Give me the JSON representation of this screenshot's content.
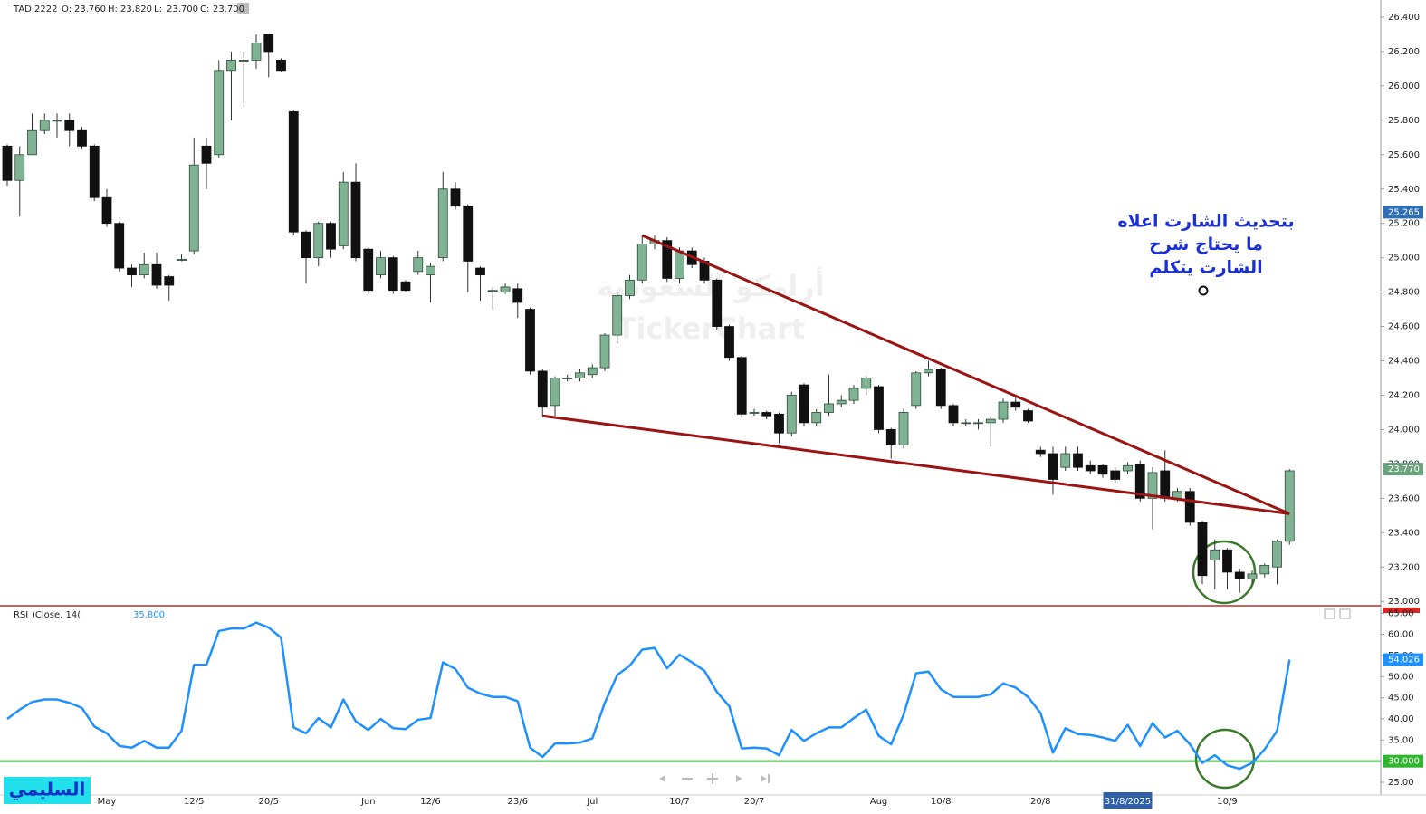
{
  "chart_data": [
    {
      "type": "candlestick",
      "symbol": "TAD.2222",
      "ohlc_info": [
        {
          "label": "O:",
          "value": "23.760"
        },
        {
          "label": "H:",
          "value": "23.820"
        },
        {
          "label": "L:",
          "value": "23.700"
        },
        {
          "label": "C:",
          "value": "23.700"
        }
      ],
      "categories": [
        null,
        null,
        null,
        null,
        null,
        null,
        null,
        null,
        "May",
        null,
        null,
        null,
        null,
        null,
        null,
        "12/5",
        null,
        null,
        null,
        null,
        null,
        "20/5",
        null,
        null,
        null,
        null,
        null,
        null,
        null,
        "Jun",
        null,
        null,
        null,
        null,
        "12/6",
        null,
        null,
        null,
        null,
        null,
        null,
        "23/6",
        null,
        null,
        null,
        null,
        null,
        "Jul",
        null,
        null,
        null,
        null,
        null,
        null,
        "10/7",
        null,
        null,
        null,
        null,
        null,
        "20/7",
        null,
        null,
        null,
        null,
        null,
        null,
        null,
        null,
        null,
        "Aug",
        null,
        null,
        null,
        null,
        "10/8",
        null,
        null,
        null,
        null,
        null,
        null,
        null,
        "20/8",
        null,
        null,
        null,
        null,
        null,
        null,
        "31/8/2025",
        null,
        null,
        null,
        null,
        null,
        null,
        null,
        "10/9",
        null,
        null,
        null,
        null,
        null
      ],
      "highlight": 90,
      "open": [
        25.65,
        25.45,
        25.6,
        25.74,
        25.8,
        25.8,
        25.74,
        25.65,
        25.35,
        25.2,
        24.94,
        24.9,
        24.96,
        24.89,
        24.99,
        25.04,
        25.65,
        25.6,
        26.09,
        26.15,
        26.15,
        26.3,
        26.15,
        25.85,
        25.15,
        25.0,
        25.2,
        25.07,
        25.44,
        25.05,
        24.9,
        25.0,
        24.86,
        24.92,
        24.9,
        25.0,
        25.4,
        25.3,
        24.94,
        24.81,
        24.8,
        24.82,
        24.7,
        24.34,
        24.14,
        24.3,
        24.3,
        24.32,
        24.36,
        24.55,
        24.78,
        24.87,
        25.08,
        25.1,
        24.88,
        25.04,
        24.98,
        24.87,
        24.6,
        24.42,
        24.1,
        24.1,
        24.09,
        23.98,
        24.26,
        24.04,
        24.1,
        24.15,
        24.17,
        24.24,
        24.25,
        24.0,
        23.91,
        24.14,
        24.33,
        24.35,
        24.14,
        24.04,
        24.04,
        24.04,
        24.06,
        24.16,
        24.11,
        23.88,
        23.86,
        23.78,
        23.86,
        23.79,
        23.79,
        23.76,
        23.76,
        23.8,
        23.6,
        23.76,
        23.6,
        23.64,
        23.46,
        23.24,
        23.3,
        23.17,
        23.13,
        23.16,
        23.2,
        23.35
      ],
      "high": [
        25.66,
        25.65,
        25.84,
        25.84,
        25.84,
        25.84,
        25.76,
        25.66,
        25.4,
        25.21,
        24.96,
        25.03,
        25.03,
        24.9,
        25.02,
        25.7,
        25.7,
        26.15,
        26.2,
        26.2,
        26.3,
        26.3,
        26.16,
        25.86,
        25.16,
        25.21,
        25.21,
        25.5,
        25.55,
        25.06,
        25.04,
        25.01,
        24.87,
        25.04,
        24.97,
        25.5,
        25.44,
        25.31,
        24.95,
        24.83,
        24.85,
        24.85,
        24.71,
        24.35,
        24.31,
        24.32,
        24.35,
        24.38,
        24.56,
        24.8,
        24.9,
        25.13,
        25.13,
        25.12,
        25.06,
        25.06,
        25.0,
        24.88,
        24.61,
        24.43,
        24.12,
        24.11,
        24.1,
        24.22,
        24.27,
        24.12,
        24.32,
        24.2,
        24.26,
        24.31,
        24.26,
        24.01,
        24.12,
        24.34,
        24.4,
        24.36,
        24.15,
        24.06,
        24.06,
        24.08,
        24.18,
        24.2,
        24.12,
        23.9,
        23.9,
        23.9,
        23.9,
        23.82,
        23.8,
        23.78,
        23.81,
        23.82,
        23.78,
        23.88,
        23.66,
        23.66,
        23.47,
        23.36,
        23.31,
        23.19,
        23.18,
        23.22,
        23.36,
        23.77
      ],
      "low": [
        25.42,
        25.24,
        25.6,
        25.72,
        25.7,
        25.65,
        25.63,
        25.33,
        25.18,
        24.92,
        24.83,
        24.88,
        24.82,
        24.75,
        24.98,
        25.02,
        25.4,
        25.58,
        25.8,
        25.9,
        26.1,
        26.05,
        26.08,
        25.13,
        24.85,
        24.95,
        25.0,
        25.05,
        24.98,
        24.79,
        24.88,
        24.79,
        24.8,
        24.9,
        24.74,
        24.98,
        25.28,
        24.8,
        24.75,
        24.7,
        24.79,
        24.65,
        24.32,
        24.08,
        24.08,
        24.28,
        24.28,
        24.3,
        24.34,
        24.5,
        24.76,
        24.85,
        25.05,
        24.86,
        24.85,
        24.94,
        24.85,
        24.58,
        24.4,
        24.07,
        24.08,
        24.06,
        23.92,
        23.96,
        24.02,
        24.02,
        24.08,
        24.13,
        24.15,
        24.2,
        23.98,
        23.83,
        23.89,
        24.12,
        24.31,
        24.12,
        24.02,
        24.02,
        24.0,
        23.9,
        24.04,
        24.11,
        24.04,
        23.84,
        23.62,
        23.76,
        23.76,
        23.74,
        23.72,
        23.69,
        23.74,
        23.58,
        23.42,
        23.58,
        23.58,
        23.44,
        23.1,
        23.07,
        23.07,
        23.05,
        23.1,
        23.14,
        23.1,
        23.33
      ],
      "close": [
        25.45,
        25.6,
        25.74,
        25.8,
        25.8,
        25.74,
        25.65,
        25.35,
        25.2,
        24.94,
        24.9,
        24.96,
        24.84,
        24.84,
        24.99,
        25.54,
        25.55,
        26.09,
        26.15,
        26.15,
        26.25,
        26.2,
        26.09,
        25.15,
        25.0,
        25.2,
        25.05,
        25.44,
        25.0,
        24.81,
        25.0,
        24.81,
        24.81,
        25.0,
        24.95,
        25.4,
        25.3,
        24.98,
        24.9,
        24.81,
        24.83,
        24.74,
        24.34,
        24.13,
        24.3,
        24.3,
        24.33,
        24.36,
        24.55,
        24.78,
        24.87,
        25.08,
        25.1,
        24.88,
        25.04,
        24.96,
        24.87,
        24.6,
        24.42,
        24.09,
        24.1,
        24.08,
        23.98,
        24.2,
        24.04,
        24.1,
        24.15,
        24.17,
        24.24,
        24.3,
        24.0,
        23.91,
        24.1,
        24.33,
        24.35,
        24.14,
        24.04,
        24.04,
        24.04,
        24.06,
        24.16,
        24.13,
        24.05,
        23.86,
        23.71,
        23.86,
        23.78,
        23.76,
        23.74,
        23.71,
        23.79,
        23.6,
        23.75,
        23.6,
        23.64,
        23.46,
        23.15,
        23.3,
        23.17,
        23.13,
        23.16,
        23.21,
        23.35,
        23.76
      ],
      "up_color": "#7fb394",
      "down_color": "#111111",
      "ylim": [
        22.98,
        26.5
      ],
      "yticks": [
        {
          "value": 23.0,
          "label": "23.000"
        },
        {
          "value": 23.2,
          "label": "23.200"
        },
        {
          "value": 23.4,
          "label": "23.400"
        },
        {
          "value": 23.6,
          "label": "23.600"
        },
        {
          "value": 23.8,
          "label": "23.800"
        },
        {
          "value": 24.0,
          "label": "24.000"
        },
        {
          "value": 24.2,
          "label": "24.200"
        },
        {
          "value": 24.4,
          "label": "24.400"
        },
        {
          "value": 24.6,
          "label": "24.600"
        },
        {
          "value": 24.8,
          "label": "24.800"
        },
        {
          "value": 25.0,
          "label": "25.000"
        },
        {
          "value": 25.2,
          "label": "25.200"
        },
        {
          "value": 25.4,
          "label": "25.400"
        },
        {
          "value": 25.6,
          "label": "25.600"
        },
        {
          "value": 25.8,
          "label": "25.800"
        },
        {
          "value": 26.0,
          "label": "26.000"
        },
        {
          "value": 26.2,
          "label": "26.200"
        },
        {
          "value": 26.4,
          "label": "26.400"
        }
      ],
      "price_tags": [
        {
          "value": 25.265,
          "label": "25.265",
          "color": "#2e6fb7"
        },
        {
          "value": 23.77,
          "label": "23.770",
          "color": "#6aa37e"
        }
      ],
      "trendlines": [
        {
          "start": [
            51,
            25.13
          ],
          "end": [
            103,
            23.51
          ],
          "color": "#9b1414"
        },
        {
          "start": [
            43,
            24.08
          ],
          "end": [
            103,
            23.51
          ],
          "color": "#9b1414"
        }
      ],
      "annotation": [
        "بتحديث الشارت اعلاه",
        "ما يحتاج شرح",
        "الشارت يتكلم"
      ],
      "watermark": [
        "أرامكو السعودية",
        "TickerChart"
      ]
    },
    {
      "type": "line",
      "title": "RSI",
      "params": ")Close, 14(",
      "header_value": "35.800",
      "color": "#1e90ff",
      "values": [
        40,
        42.2,
        44,
        44.6,
        44.6,
        43.8,
        42.6,
        38.2,
        36.6,
        33.6,
        33.2,
        34.8,
        33.2,
        33.2,
        37.2,
        52.8,
        52.8,
        60.8,
        61.4,
        61.4,
        62.8,
        61.6,
        59.2,
        38,
        36.6,
        40.2,
        38,
        44.6,
        39.4,
        37.4,
        40,
        37.8,
        37.6,
        39.8,
        40.2,
        53.4,
        51.8,
        47.4,
        46,
        45.2,
        45.2,
        44.2,
        33.2,
        31,
        34.2,
        34.2,
        34.4,
        35.4,
        43.8,
        50.4,
        52.6,
        56.4,
        56.8,
        52,
        55.2,
        53.4,
        51.4,
        46.4,
        43,
        33,
        33.2,
        33,
        31.4,
        37.4,
        34.8,
        36.6,
        38,
        38,
        40.2,
        42.2,
        36,
        34,
        41,
        50.8,
        51.2,
        47,
        45.2,
        45.2,
        45.2,
        45.8,
        48.4,
        47.4,
        45.2,
        41.4,
        32,
        37.8,
        36.4,
        36.2,
        35.6,
        34.8,
        38.6,
        33.6,
        39,
        35.6,
        37.2,
        34,
        29.6,
        31.4,
        29,
        28.2,
        29.6,
        32.8,
        37.2,
        54.026
      ],
      "last_value_label": "54.026",
      "ylim": [
        22,
        67
      ],
      "yticks": [
        {
          "value": 25,
          "label": "25.00"
        },
        {
          "value": 35,
          "label": "35.00"
        },
        {
          "value": 40,
          "label": "40.00"
        },
        {
          "value": 45,
          "label": "45.00"
        },
        {
          "value": 50,
          "label": "50.00"
        },
        {
          "value": 55,
          "label": "55.00"
        },
        {
          "value": 60,
          "label": "60.00"
        },
        {
          "value": 65,
          "label": "65.00"
        }
      ],
      "level": {
        "value": 30,
        "label": "30.000",
        "color": "#2fb52f"
      }
    }
  ],
  "badge": "السليمي"
}
